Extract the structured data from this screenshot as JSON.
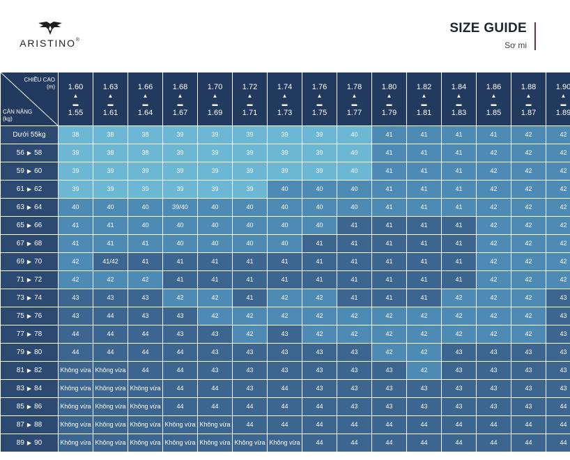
{
  "brand": {
    "name": "ARISTINO",
    "reg": "®"
  },
  "guide": {
    "title": "SIZE GUIDE",
    "subtitle": "Sơ mi",
    "accent": "#7a2a3a"
  },
  "header": {
    "height_label": "CHIỀU CAO",
    "height_unit": "(m)",
    "weight_label": "CÂN NẶNG",
    "weight_unit": "(kg)",
    "columns": [
      {
        "top": "1.60",
        "bottom": "1.55"
      },
      {
        "top": "1.63",
        "bottom": "1.61"
      },
      {
        "top": "1.66",
        "bottom": "1.64"
      },
      {
        "top": "1.68",
        "bottom": "1.67"
      },
      {
        "top": "1.70",
        "bottom": "1.69"
      },
      {
        "top": "1.72",
        "bottom": "1.71"
      },
      {
        "top": "1.74",
        "bottom": "1.73"
      },
      {
        "top": "1.76",
        "bottom": "1.75"
      },
      {
        "top": "1.78",
        "bottom": "1.77"
      },
      {
        "top": "1.80",
        "bottom": "1.79"
      },
      {
        "top": "1.82",
        "bottom": "1.81"
      },
      {
        "top": "1.84",
        "bottom": "1.83"
      },
      {
        "top": "1.86",
        "bottom": "1.85"
      },
      {
        "top": "1.88",
        "bottom": "1.87"
      },
      {
        "top": "1.90",
        "bottom": "1.89"
      }
    ]
  },
  "rows": [
    {
      "label": "Dưới 55kg",
      "values": [
        "38",
        "38",
        "38",
        "39",
        "39",
        "39",
        "39",
        "39",
        "40",
        "41",
        "41",
        "41",
        "41",
        "42",
        "42"
      ],
      "shades": [
        "L",
        "L",
        "L",
        "L",
        "L",
        "L",
        "L",
        "L",
        "L",
        "M",
        "M",
        "M",
        "M",
        "M",
        "M"
      ]
    },
    {
      "label_from": "56",
      "label_to": "58",
      "values": [
        "39",
        "38",
        "38",
        "39",
        "39",
        "39",
        "39",
        "39",
        "40",
        "41",
        "41",
        "41",
        "42",
        "42",
        "42"
      ],
      "shades": [
        "L",
        "L",
        "L",
        "L",
        "L",
        "L",
        "L",
        "L",
        "L",
        "M",
        "M",
        "M",
        "M",
        "M",
        "M"
      ]
    },
    {
      "label_from": "59",
      "label_to": "60",
      "values": [
        "39",
        "39",
        "39",
        "39",
        "39",
        "39",
        "39",
        "39",
        "40",
        "41",
        "41",
        "41",
        "42",
        "42",
        "42"
      ],
      "shades": [
        "L",
        "L",
        "L",
        "L",
        "L",
        "L",
        "L",
        "L",
        "L",
        "M",
        "M",
        "M",
        "M",
        "M",
        "M"
      ]
    },
    {
      "label_from": "61",
      "label_to": "62",
      "values": [
        "39",
        "39",
        "39",
        "39",
        "39",
        "39",
        "40",
        "40",
        "40",
        "41",
        "41",
        "41",
        "42",
        "42",
        "42"
      ],
      "shades": [
        "L",
        "L",
        "L",
        "L",
        "L",
        "L",
        "M",
        "M",
        "M",
        "M",
        "M",
        "M",
        "M",
        "M",
        "M"
      ]
    },
    {
      "label_from": "63",
      "label_to": "64",
      "values": [
        "40",
        "40",
        "40",
        "39/40",
        "40",
        "40",
        "40",
        "40",
        "40",
        "41",
        "41",
        "41",
        "42",
        "42",
        "42"
      ],
      "shades": [
        "M",
        "M",
        "M",
        "M",
        "M",
        "M",
        "M",
        "M",
        "M",
        "M",
        "M",
        "M",
        "M",
        "M",
        "M"
      ]
    },
    {
      "label_from": "65",
      "label_to": "66",
      "values": [
        "41",
        "41",
        "40",
        "40",
        "40",
        "40",
        "40",
        "40",
        "41",
        "41",
        "41",
        "41",
        "42",
        "42",
        "42"
      ],
      "shades": [
        "M",
        "M",
        "M",
        "M",
        "M",
        "M",
        "M",
        "M",
        "D",
        "D",
        "D",
        "D",
        "M",
        "M",
        "M"
      ]
    },
    {
      "label_from": "67",
      "label_to": "68",
      "values": [
        "41",
        "41",
        "41",
        "40",
        "40",
        "40",
        "40",
        "41",
        "41",
        "41",
        "41",
        "41",
        "42",
        "42",
        "42"
      ],
      "shades": [
        "M",
        "M",
        "M",
        "M",
        "M",
        "M",
        "M",
        "D",
        "D",
        "D",
        "D",
        "D",
        "M",
        "M",
        "M"
      ]
    },
    {
      "label_from": "69",
      "label_to": "70",
      "values": [
        "42",
        "41/42",
        "41",
        "41",
        "41",
        "41",
        "41",
        "41",
        "41",
        "41",
        "41",
        "41",
        "42",
        "42",
        "42"
      ],
      "shades": [
        "M",
        "D",
        "D",
        "D",
        "D",
        "D",
        "D",
        "D",
        "D",
        "D",
        "D",
        "D",
        "M",
        "M",
        "M"
      ]
    },
    {
      "label_from": "71",
      "label_to": "72",
      "values": [
        "42",
        "42",
        "42",
        "41",
        "41",
        "41",
        "41",
        "41",
        "41",
        "41",
        "41",
        "41",
        "42",
        "42",
        "42"
      ],
      "shades": [
        "M",
        "M",
        "M",
        "D",
        "D",
        "D",
        "D",
        "D",
        "D",
        "D",
        "D",
        "D",
        "M",
        "M",
        "M"
      ]
    },
    {
      "label_from": "73",
      "label_to": "74",
      "values": [
        "43",
        "43",
        "43",
        "42",
        "42",
        "41",
        "42",
        "42",
        "41",
        "41",
        "41",
        "42",
        "42",
        "42",
        "43"
      ],
      "shades": [
        "D",
        "D",
        "D",
        "M",
        "M",
        "D",
        "M",
        "M",
        "D",
        "D",
        "D",
        "M",
        "M",
        "M",
        "D"
      ]
    },
    {
      "label_from": "75",
      "label_to": "76",
      "values": [
        "43",
        "44",
        "43",
        "43",
        "42",
        "42",
        "42",
        "42",
        "42",
        "42",
        "42",
        "42",
        "42",
        "42",
        "43"
      ],
      "shades": [
        "D",
        "D",
        "D",
        "D",
        "M",
        "M",
        "M",
        "M",
        "M",
        "M",
        "M",
        "M",
        "M",
        "M",
        "D"
      ]
    },
    {
      "label_from": "77",
      "label_to": "78",
      "values": [
        "44",
        "44",
        "44",
        "43",
        "43",
        "42",
        "43",
        "42",
        "42",
        "42",
        "42",
        "42",
        "42",
        "42",
        "43"
      ],
      "shades": [
        "D",
        "D",
        "D",
        "D",
        "D",
        "M",
        "D",
        "M",
        "M",
        "M",
        "M",
        "M",
        "M",
        "M",
        "D"
      ]
    },
    {
      "label_from": "79",
      "label_to": "80",
      "values": [
        "44",
        "44",
        "44",
        "44",
        "43",
        "43",
        "43",
        "43",
        "43",
        "42",
        "42",
        "43",
        "43",
        "43",
        "43"
      ],
      "shades": [
        "D",
        "D",
        "D",
        "D",
        "D",
        "D",
        "D",
        "D",
        "D",
        "M",
        "M",
        "D",
        "D",
        "D",
        "D"
      ]
    },
    {
      "label_from": "81",
      "label_to": "82",
      "values": [
        "Không vừa",
        "Không vừa",
        "44",
        "44",
        "43",
        "43",
        "43",
        "43",
        "43",
        "43",
        "42",
        "43",
        "43",
        "43",
        "43"
      ],
      "shades": [
        "D",
        "D",
        "D",
        "D",
        "D",
        "D",
        "D",
        "D",
        "D",
        "D",
        "M",
        "D",
        "D",
        "D",
        "D"
      ]
    },
    {
      "label_from": "83",
      "label_to": "84",
      "values": [
        "Không vừa",
        "Không vừa",
        "Không vừa",
        "44",
        "44",
        "43",
        "44",
        "43",
        "43",
        "43",
        "43",
        "43",
        "43",
        "43",
        "43"
      ],
      "shades": [
        "D",
        "D",
        "D",
        "D",
        "D",
        "D",
        "D",
        "D",
        "D",
        "D",
        "D",
        "D",
        "D",
        "D",
        "D"
      ]
    },
    {
      "label_from": "85",
      "label_to": "86",
      "values": [
        "Không vừa",
        "Không vừa",
        "Không vừa",
        "44",
        "44",
        "44",
        "44",
        "44",
        "43",
        "43",
        "43",
        "43",
        "43",
        "43",
        "44"
      ],
      "shades": [
        "D",
        "D",
        "D",
        "D",
        "D",
        "D",
        "D",
        "D",
        "D",
        "D",
        "D",
        "D",
        "D",
        "D",
        "D"
      ]
    },
    {
      "label_from": "87",
      "label_to": "88",
      "values": [
        "Không vừa",
        "Không vừa",
        "Không vừa",
        "Không vừa",
        "Không vừa",
        "44",
        "44",
        "44",
        "44",
        "44",
        "44",
        "44",
        "44",
        "44",
        "44"
      ],
      "shades": [
        "D",
        "D",
        "D",
        "D",
        "D",
        "D",
        "D",
        "D",
        "D",
        "D",
        "D",
        "D",
        "D",
        "D",
        "D"
      ]
    },
    {
      "label_from": "89",
      "label_to": "90",
      "values": [
        "Không vừa",
        "Không vừa",
        "Không vừa",
        "Không vừa",
        "Không vừa",
        "Không vừa",
        "Không vừa",
        "44",
        "44",
        "44",
        "44",
        "44",
        "44",
        "44",
        "44"
      ],
      "shades": [
        "D",
        "D",
        "D",
        "D",
        "D",
        "D",
        "D",
        "D",
        "D",
        "D",
        "D",
        "D",
        "D",
        "D",
        "D"
      ]
    }
  ],
  "colors": {
    "header": "#213a5e",
    "dark": "#3c6690",
    "mid": "#4d8ab4",
    "light": "#6cb7d3"
  }
}
